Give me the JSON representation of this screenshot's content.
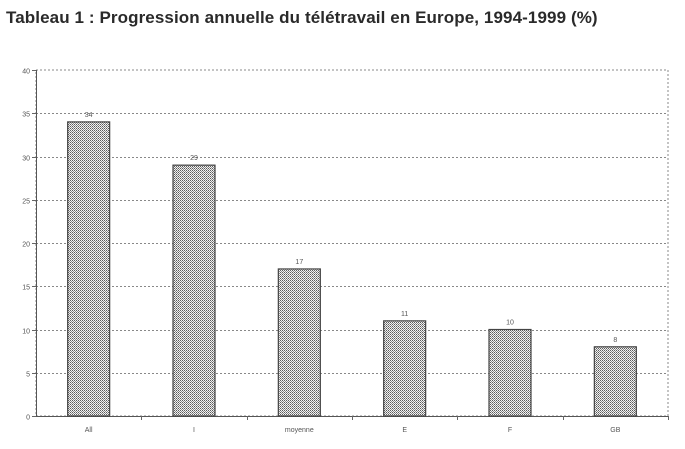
{
  "chart_data": {
    "type": "bar",
    "title": "Tableau 1 : Progression annuelle du télétravail en Europe, 1994-1999 (%)",
    "categories": [
      "All",
      "I",
      "moyenne",
      "E",
      "F",
      "GB"
    ],
    "values": [
      34,
      29,
      17,
      11,
      10,
      8
    ],
    "data_labels": [
      "34",
      "29",
      "17",
      "11",
      "10",
      "8"
    ],
    "y_ticks": [
      "0",
      "5",
      "10",
      "15",
      "20",
      "25",
      "30",
      "35",
      "40"
    ],
    "ylim": [
      0,
      40
    ],
    "xlabel": "",
    "ylabel": "",
    "grid": true,
    "legend": "none",
    "bar_pattern": "dotted-gray",
    "colors": {
      "bar_fill": "#c8c8c8",
      "bar_stroke": "#444444",
      "grid": "#888888"
    }
  }
}
